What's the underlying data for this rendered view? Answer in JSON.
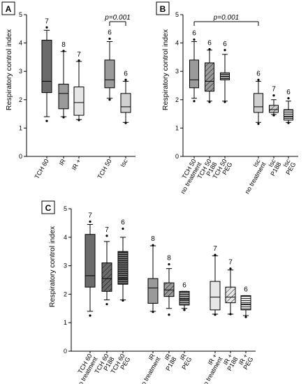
{
  "colors": {
    "dark": "#6b6b6b",
    "mid": "#9a9a9a",
    "light": "#d0d0d0",
    "lighter": "#e6e6e6",
    "line": "#000000"
  },
  "chart_data": [
    {
      "panel": "A",
      "type": "box",
      "ylabel": "Respiratory control index",
      "ylim": [
        0,
        5
      ],
      "yticks": [
        "0",
        "1",
        "2",
        "3",
        "4",
        "5"
      ],
      "significance": {
        "label": "p=0.001",
        "between": [
          3,
          4
        ]
      },
      "boxes": [
        {
          "label": "TCH 60",
          "n": "7",
          "shade": "dark",
          "pattern": "none",
          "whislo": 1.4,
          "q1": 2.25,
          "med": 2.65,
          "q3": 4.1,
          "whishi": 4.45,
          "outliers": [
            1.25,
            4.55
          ]
        },
        {
          "label": "IR",
          "n": "8",
          "shade": "mid",
          "pattern": "none",
          "whislo": 1.4,
          "q1": 1.68,
          "med": 2.22,
          "q3": 2.55,
          "whishi": 3.7,
          "outliers": [
            1.38,
            3.72
          ]
        },
        {
          "label": "IR +",
          "n": "7",
          "shade": "lighter",
          "pattern": "none",
          "whislo": 1.3,
          "q1": 1.45,
          "med": 1.9,
          "q3": 2.45,
          "whishi": 3.35,
          "outliers": [
            1.28,
            3.38
          ]
        },
        {
          "label": "TCH 50",
          "n": "6",
          "shade": "mid",
          "pattern": "none",
          "whislo": 2.05,
          "q1": 2.42,
          "med": 2.7,
          "q3": 3.4,
          "whishi": 4.05,
          "outliers": [
            2.0,
            4.15
          ]
        },
        {
          "label": "Isc",
          "n": "6",
          "shade": "light",
          "pattern": "none",
          "whislo": 1.2,
          "q1": 1.55,
          "med": 1.75,
          "q3": 2.22,
          "whishi": 2.65,
          "outliers": [
            1.18,
            2.7
          ]
        }
      ]
    },
    {
      "panel": "B",
      "type": "box",
      "ylabel": "Respiratory control index",
      "ylim": [
        0,
        5
      ],
      "yticks": [
        "0",
        "1",
        "2",
        "3",
        "4",
        "5"
      ],
      "significance": {
        "label": "p=0.001",
        "between": [
          0,
          3
        ]
      },
      "boxes": [
        {
          "label": "TCH 50\nno treatment",
          "n": "6",
          "shade": "mid",
          "pattern": "none",
          "whislo": 2.05,
          "q1": 2.42,
          "med": 2.7,
          "q3": 3.4,
          "whishi": 4.05,
          "outliers": [
            1.95,
            4.12
          ]
        },
        {
          "label": "TCH 50\nP188",
          "n": "6",
          "shade": "mid",
          "pattern": "diag",
          "whislo": 1.95,
          "q1": 2.3,
          "med": 2.65,
          "q3": 3.3,
          "whishi": 3.75,
          "outliers": [
            1.92,
            3.78
          ]
        },
        {
          "label": "TCH 50\nPEG",
          "n": "6",
          "shade": "mid",
          "pattern": "horiz",
          "whislo": 1.95,
          "q1": 2.7,
          "med": 2.82,
          "q3": 2.95,
          "whishi": 3.6,
          "outliers": [
            1.92,
            3.75
          ]
        },
        {
          "label": "Isc\nno treatment",
          "n": "6",
          "shade": "light",
          "pattern": "none",
          "whislo": 1.2,
          "q1": 1.55,
          "med": 1.75,
          "q3": 2.22,
          "whishi": 2.65,
          "outliers": [
            1.15,
            2.7
          ]
        },
        {
          "label": "Isc\nP188",
          "n": "7",
          "shade": "light",
          "pattern": "diag",
          "whislo": 1.48,
          "q1": 1.55,
          "med": 1.65,
          "q3": 1.8,
          "whishi": 2.0,
          "outliers": [
            1.45,
            2.15
          ]
        },
        {
          "label": "Isc\nPEG",
          "n": "6",
          "shade": "light",
          "pattern": "horiz",
          "whislo": 1.2,
          "q1": 1.28,
          "med": 1.4,
          "q3": 1.65,
          "whishi": 1.95,
          "outliers": [
            1.18,
            2.05
          ]
        }
      ]
    },
    {
      "panel": "C",
      "type": "box",
      "ylabel": "Respiratory control index",
      "ylim": [
        0,
        5
      ],
      "yticks": [
        "0",
        "1",
        "2",
        "3",
        "4",
        "5"
      ],
      "boxes": [
        {
          "label": "TCH 60\nno treatment",
          "n": "7",
          "shade": "dark",
          "pattern": "none",
          "whislo": 1.4,
          "q1": 2.25,
          "med": 2.65,
          "q3": 4.1,
          "whishi": 4.45,
          "outliers": [
            1.25,
            4.55
          ]
        },
        {
          "label": "TCH 60\nP188",
          "n": "7",
          "shade": "dark",
          "pattern": "diag",
          "whislo": 1.8,
          "q1": 2.1,
          "med": 2.55,
          "q3": 3.1,
          "whishi": 3.85,
          "outliers": [
            1.65,
            4.05
          ]
        },
        {
          "label": "TCH 60\nPEG",
          "n": "6",
          "shade": "dark",
          "pattern": "horiz",
          "whislo": 1.8,
          "q1": 2.35,
          "med": 2.55,
          "q3": 3.5,
          "whishi": 4.0,
          "outliers": [
            1.78,
            4.3
          ]
        },
        {
          "label": "IR\nno treatment",
          "n": "8",
          "shade": "mid",
          "pattern": "none",
          "whislo": 1.4,
          "q1": 1.68,
          "med": 2.22,
          "q3": 2.55,
          "whishi": 3.7,
          "outliers": [
            1.38,
            3.72
          ]
        },
        {
          "label": "IR\nP188",
          "n": "8",
          "shade": "mid",
          "pattern": "diag",
          "whislo": 1.5,
          "q1": 1.92,
          "med": 2.15,
          "q3": 2.4,
          "whishi": 2.9,
          "outliers": [
            1.28,
            3.05
          ]
        },
        {
          "label": "IR\nPEG",
          "n": "6",
          "shade": "mid",
          "pattern": "horiz",
          "whislo": 1.5,
          "q1": 1.62,
          "med": 1.82,
          "q3": 2.1,
          "whishi": 2.1,
          "outliers": [
            1.45
          ]
        },
        {
          "label": "IR +\nno treatment",
          "n": "7",
          "shade": "lighter",
          "pattern": "none",
          "whislo": 1.3,
          "q1": 1.45,
          "med": 1.9,
          "q3": 2.45,
          "whishi": 3.35,
          "outliers": [
            1.28,
            3.38
          ]
        },
        {
          "label": "IR +\nP188",
          "n": "7",
          "shade": "lighter",
          "pattern": "diag",
          "whislo": 1.3,
          "q1": 1.7,
          "med": 1.9,
          "q3": 2.25,
          "whishi": 2.85,
          "outliers": [
            1.3,
            2.9
          ]
        },
        {
          "label": "IR +\nPEG",
          "n": "6",
          "shade": "lighter",
          "pattern": "horiz",
          "whislo": 1.25,
          "q1": 1.45,
          "med": 1.65,
          "q3": 1.95,
          "whishi": 1.95,
          "outliers": [
            1.2
          ]
        }
      ]
    }
  ]
}
